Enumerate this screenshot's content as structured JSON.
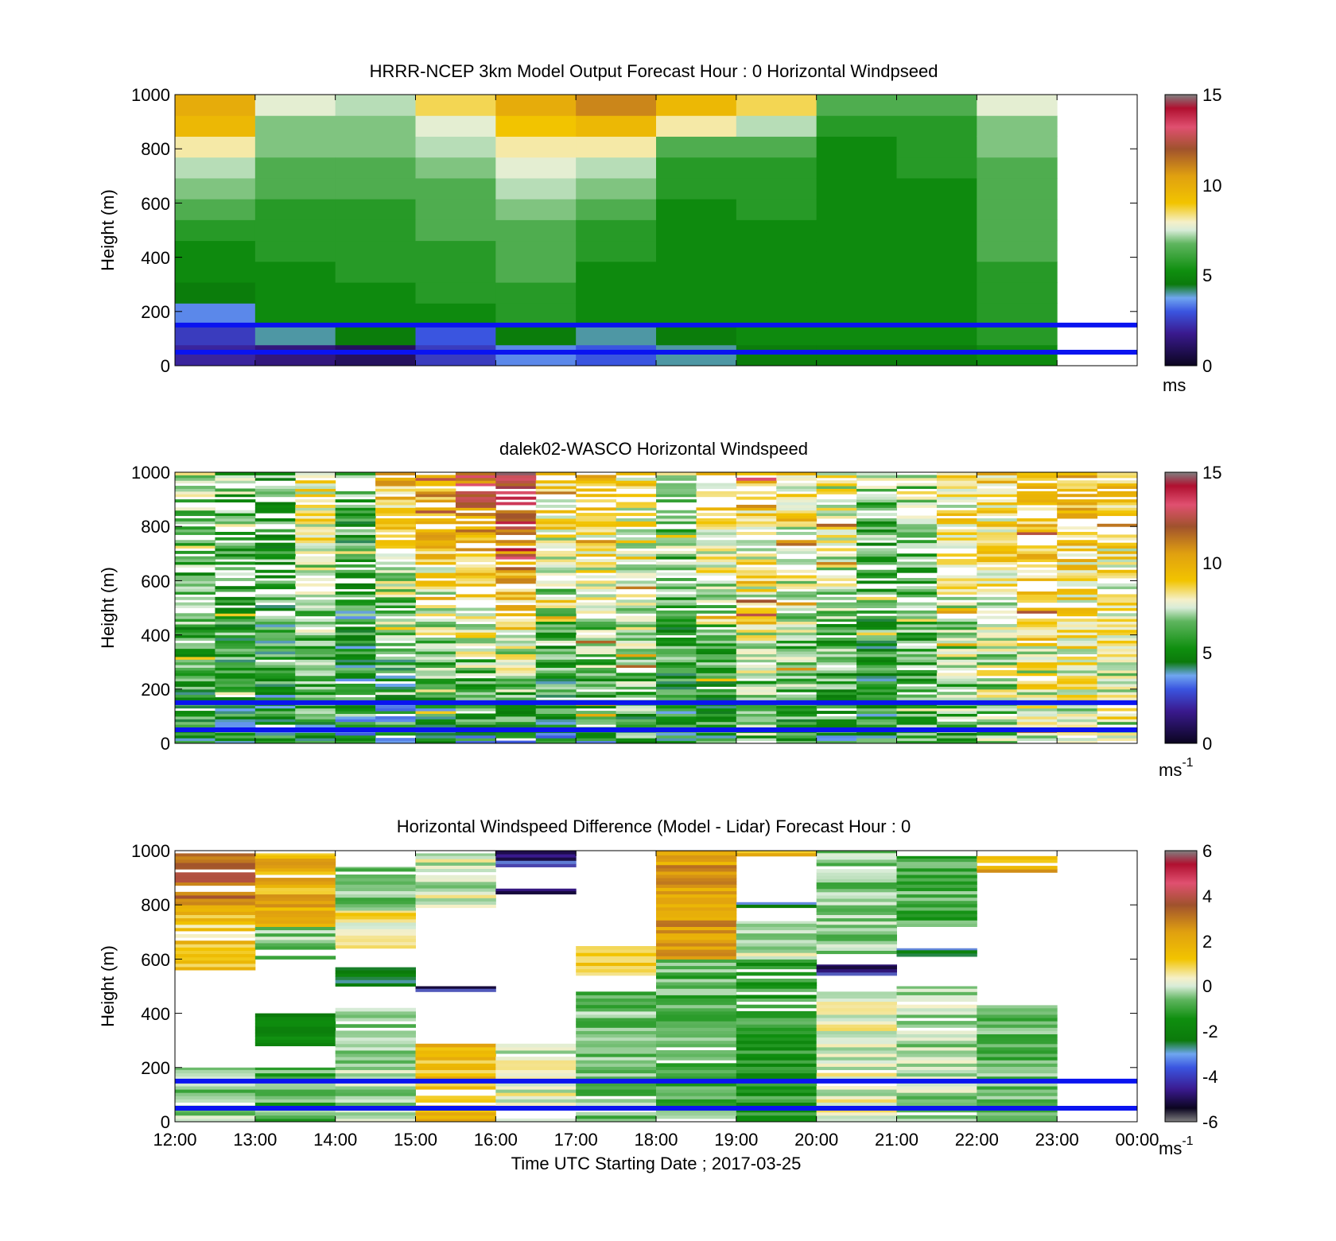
{
  "figure": {
    "xlabel": "Time UTC  Starting Date ; 2017-03-25",
    "x_ticks": [
      "12:00",
      "13:00",
      "14:00",
      "15:00",
      "16:00",
      "17:00",
      "18:00",
      "19:00",
      "20:00",
      "21:00",
      "22:00",
      "23:00",
      "00:00"
    ]
  },
  "chart_data": [
    {
      "type": "heatmap",
      "title": "HRRR-NCEP 3km Model Output   Forecast Hour : 0 Horizontal Windpseed",
      "ylabel": "Height (m)",
      "y_ticks": [
        "0",
        "200",
        "400",
        "600",
        "800",
        "1000"
      ],
      "ylim": [
        0,
        1000
      ],
      "xlim_hours": [
        12,
        24
      ],
      "colorbar": {
        "label": "ms",
        "label_sup": "",
        "ticks": [
          "0",
          "5",
          "10",
          "15"
        ],
        "range": [
          0,
          15
        ]
      },
      "reference_lines_m": [
        150,
        50
      ],
      "columns": [
        {
          "x_start": 12,
          "x_end": 13,
          "z": [
            2.0,
            2.5,
            3.5,
            4.5,
            5.0,
            5.0,
            5.5,
            6.0,
            6.5,
            7.0,
            8.0,
            9.5,
            10.0
          ]
        },
        {
          "x_start": 13,
          "x_end": 14,
          "z": [
            1.5,
            4.0,
            5.0,
            5.0,
            5.0,
            5.5,
            5.5,
            5.5,
            6.0,
            6.0,
            6.5,
            6.5,
            7.5
          ]
        },
        {
          "x_start": 14,
          "x_end": 15,
          "z": [
            1.0,
            4.5,
            5.0,
            5.0,
            5.5,
            5.5,
            5.5,
            5.5,
            6.0,
            6.0,
            6.5,
            6.5,
            7.0
          ]
        },
        {
          "x_start": 15,
          "x_end": 16,
          "z": [
            2.5,
            3.0,
            5.0,
            5.5,
            5.5,
            5.5,
            6.0,
            6.0,
            6.0,
            6.5,
            7.0,
            7.5,
            8.5
          ]
        },
        {
          "x_start": 16,
          "x_end": 17,
          "z": [
            3.5,
            4.5,
            5.5,
            5.5,
            6.0,
            6.0,
            6.0,
            6.5,
            7.0,
            7.5,
            8.0,
            9.0,
            10.0
          ]
        },
        {
          "x_start": 17,
          "x_end": 18,
          "z": [
            3.0,
            4.0,
            5.0,
            5.0,
            5.0,
            5.5,
            5.5,
            6.0,
            6.5,
            7.0,
            8.0,
            9.5,
            11.0
          ]
        },
        {
          "x_start": 18,
          "x_end": 19,
          "z": [
            4.0,
            4.5,
            5.0,
            5.0,
            5.0,
            5.0,
            5.0,
            5.0,
            5.5,
            5.5,
            6.0,
            8.0,
            9.5
          ]
        },
        {
          "x_start": 19,
          "x_end": 20,
          "z": [
            4.5,
            5.0,
            5.0,
            5.0,
            5.0,
            5.0,
            5.0,
            5.5,
            5.5,
            5.5,
            6.0,
            7.0,
            8.5
          ]
        },
        {
          "x_start": 20,
          "x_end": 21,
          "z": [
            4.5,
            5.0,
            5.0,
            5.0,
            5.0,
            5.0,
            5.0,
            5.0,
            5.0,
            5.0,
            5.0,
            5.5,
            6.0
          ]
        },
        {
          "x_start": 21,
          "x_end": 22,
          "z": [
            4.5,
            5.0,
            5.0,
            5.0,
            5.0,
            5.0,
            5.0,
            5.0,
            5.0,
            5.5,
            5.5,
            5.5,
            6.0
          ]
        },
        {
          "x_start": 22,
          "x_end": 23,
          "z": [
            5.0,
            5.5,
            5.5,
            5.5,
            5.5,
            6.0,
            6.0,
            6.0,
            6.0,
            6.0,
            6.5,
            6.5,
            7.5
          ]
        }
      ]
    },
    {
      "type": "heatmap",
      "title": "dalek02-WASCO  Horizontal Windspeed",
      "ylabel": "Height (m)",
      "y_ticks": [
        "0",
        "200",
        "400",
        "600",
        "800",
        "1000"
      ],
      "ylim": [
        0,
        1000
      ],
      "xlim_hours": [
        12,
        24
      ],
      "colorbar": {
        "label": "ms",
        "label_sup": "-1",
        "ticks": [
          "0",
          "5",
          "10",
          "15"
        ],
        "range": [
          0,
          15
        ]
      },
      "reference_lines_m": [
        150,
        50
      ],
      "column_profiles": [
        {
          "x_start": 12.0,
          "x_end": 12.5,
          "coverage_to_m": 1000,
          "low_z": 5.0,
          "high_z": 7.0
        },
        {
          "x_start": 12.5,
          "x_end": 13.0,
          "coverage_to_m": 1000,
          "low_z": 5.0,
          "high_z": 6.5
        },
        {
          "x_start": 13.0,
          "x_end": 13.5,
          "coverage_to_m": 1000,
          "low_z": 5.0,
          "high_z": 6.0
        },
        {
          "x_start": 13.5,
          "x_end": 14.0,
          "coverage_to_m": 1000,
          "low_z": 5.0,
          "high_z": 8.5
        },
        {
          "x_start": 14.0,
          "x_end": 14.5,
          "coverage_to_m": 1000,
          "low_z": 4.5,
          "high_z": 6.0
        },
        {
          "x_start": 14.5,
          "x_end": 15.0,
          "coverage_to_m": 1000,
          "low_z": 4.0,
          "high_z": 9.5
        },
        {
          "x_start": 15.0,
          "x_end": 15.5,
          "coverage_to_m": 1000,
          "low_z": 4.5,
          "high_z": 10.5
        },
        {
          "x_start": 15.5,
          "x_end": 16.0,
          "coverage_to_m": 1000,
          "low_z": 4.5,
          "high_z": 12.0
        },
        {
          "x_start": 16.0,
          "x_end": 16.5,
          "coverage_to_m": 1000,
          "low_z": 4.5,
          "high_z": 13.5
        },
        {
          "x_start": 16.5,
          "x_end": 17.0,
          "coverage_to_m": 1000,
          "low_z": 4.5,
          "high_z": 9.0
        },
        {
          "x_start": 17.0,
          "x_end": 17.5,
          "coverage_to_m": 1000,
          "low_z": 5.0,
          "high_z": 9.5
        },
        {
          "x_start": 17.5,
          "x_end": 18.0,
          "coverage_to_m": 1000,
          "low_z": 5.5,
          "high_z": 8.5
        },
        {
          "x_start": 18.0,
          "x_end": 18.5,
          "coverage_to_m": 1000,
          "low_z": 5.0,
          "high_z": 7.0
        },
        {
          "x_start": 18.5,
          "x_end": 19.0,
          "coverage_to_m": 1000,
          "low_z": 5.0,
          "high_z": 9.0
        },
        {
          "x_start": 19.0,
          "x_end": 19.5,
          "coverage_to_m": 1000,
          "low_z": 6.0,
          "high_z": 9.0
        },
        {
          "x_start": 19.5,
          "x_end": 20.0,
          "coverage_to_m": 1000,
          "low_z": 5.5,
          "high_z": 8.5
        },
        {
          "x_start": 20.0,
          "x_end": 20.5,
          "coverage_to_m": 1000,
          "low_z": 5.0,
          "high_z": 8.0
        },
        {
          "x_start": 20.5,
          "x_end": 21.0,
          "coverage_to_m": 1000,
          "low_z": 5.0,
          "high_z": 6.5
        },
        {
          "x_start": 21.0,
          "x_end": 21.5,
          "coverage_to_m": 1000,
          "low_z": 5.5,
          "high_z": 7.0
        },
        {
          "x_start": 21.5,
          "x_end": 22.0,
          "coverage_to_m": 1000,
          "low_z": 6.0,
          "high_z": 8.5
        },
        {
          "x_start": 22.0,
          "x_end": 22.5,
          "coverage_to_m": 1000,
          "low_z": 6.5,
          "high_z": 9.0
        },
        {
          "x_start": 22.5,
          "x_end": 23.0,
          "coverage_to_m": 1000,
          "low_z": 7.0,
          "high_z": 9.5
        },
        {
          "x_start": 23.0,
          "x_end": 23.5,
          "coverage_to_m": 1000,
          "low_z": 7.0,
          "high_z": 9.5
        },
        {
          "x_start": 23.5,
          "x_end": 24.0,
          "coverage_to_m": 1000,
          "low_z": 7.0,
          "high_z": 9.0
        }
      ]
    },
    {
      "type": "heatmap",
      "title": "Horizontal Windspeed Difference (Model - Lidar) Forecast Hour : 0",
      "ylabel": "Height (m)",
      "y_ticks": [
        "0",
        "200",
        "400",
        "600",
        "800",
        "1000"
      ],
      "ylim": [
        0,
        1000
      ],
      "xlim_hours": [
        12,
        24
      ],
      "colorbar": {
        "label": "ms",
        "label_sup": "-1",
        "ticks": [
          "-6",
          "-4",
          "-2",
          "0",
          "2",
          "4",
          "6"
        ],
        "range": [
          -6,
          6
        ]
      },
      "reference_lines_m": [
        150,
        50
      ],
      "columns": [
        {
          "x_start": 12,
          "x_end": 13,
          "segments": [
            {
              "y0": 0,
              "y1": 200,
              "z": -1.0
            },
            {
              "y0": 560,
              "y1": 800,
              "z": 0.8
            },
            {
              "y0": 800,
              "y1": 990,
              "z": 2.8
            }
          ]
        },
        {
          "x_start": 13,
          "x_end": 14,
          "segments": [
            {
              "y0": 0,
              "y1": 200,
              "z": -1.5
            },
            {
              "y0": 280,
              "y1": 400,
              "z": -2.5
            },
            {
              "y0": 600,
              "y1": 720,
              "z": -1.0
            },
            {
              "y0": 720,
              "y1": 990,
              "z": 1.3
            }
          ]
        },
        {
          "x_start": 14,
          "x_end": 15,
          "segments": [
            {
              "y0": 0,
              "y1": 420,
              "z": -0.8
            },
            {
              "y0": 500,
              "y1": 570,
              "z": -3.0
            },
            {
              "y0": 640,
              "y1": 780,
              "z": 0.3
            },
            {
              "y0": 780,
              "y1": 940,
              "z": -1.0
            }
          ]
        },
        {
          "x_start": 15,
          "x_end": 16,
          "segments": [
            {
              "y0": 0,
              "y1": 290,
              "z": 1.0
            },
            {
              "y0": 480,
              "y1": 500,
              "z": -5.0
            },
            {
              "y0": 790,
              "y1": 990,
              "z": -0.5
            }
          ]
        },
        {
          "x_start": 16,
          "x_end": 17,
          "segments": [
            {
              "y0": 0,
              "y1": 290,
              "z": -0.3
            },
            {
              "y0": 840,
              "y1": 860,
              "z": -5.5
            },
            {
              "y0": 940,
              "y1": 1000,
              "z": -5.0
            }
          ]
        },
        {
          "x_start": 17,
          "x_end": 18,
          "segments": [
            {
              "y0": 0,
              "y1": 480,
              "z": -1.2
            },
            {
              "y0": 540,
              "y1": 650,
              "z": 0.6
            }
          ]
        },
        {
          "x_start": 18,
          "x_end": 19,
          "segments": [
            {
              "y0": 0,
              "y1": 600,
              "z": -1.4
            },
            {
              "y0": 600,
              "y1": 1000,
              "z": 1.8
            }
          ]
        },
        {
          "x_start": 19,
          "x_end": 20,
          "segments": [
            {
              "y0": 0,
              "y1": 600,
              "z": -2.0
            },
            {
              "y0": 600,
              "y1": 740,
              "z": -0.5
            },
            {
              "y0": 790,
              "y1": 810,
              "z": -3.5
            },
            {
              "y0": 980,
              "y1": 1000,
              "z": 1.0
            }
          ]
        },
        {
          "x_start": 20,
          "x_end": 21,
          "segments": [
            {
              "y0": 0,
              "y1": 480,
              "z": -0.3
            },
            {
              "y0": 540,
              "y1": 580,
              "z": -5.0
            },
            {
              "y0": 620,
              "y1": 1000,
              "z": -1.0
            }
          ]
        },
        {
          "x_start": 21,
          "x_end": 22,
          "segments": [
            {
              "y0": 0,
              "y1": 500,
              "z": -0.8
            },
            {
              "y0": 610,
              "y1": 640,
              "z": -3.5
            },
            {
              "y0": 720,
              "y1": 980,
              "z": -1.5
            }
          ]
        },
        {
          "x_start": 22,
          "x_end": 23,
          "segments": [
            {
              "y0": 0,
              "y1": 430,
              "z": -1.3
            },
            {
              "y0": 920,
              "y1": 990,
              "z": 1.5
            }
          ]
        }
      ]
    }
  ]
}
